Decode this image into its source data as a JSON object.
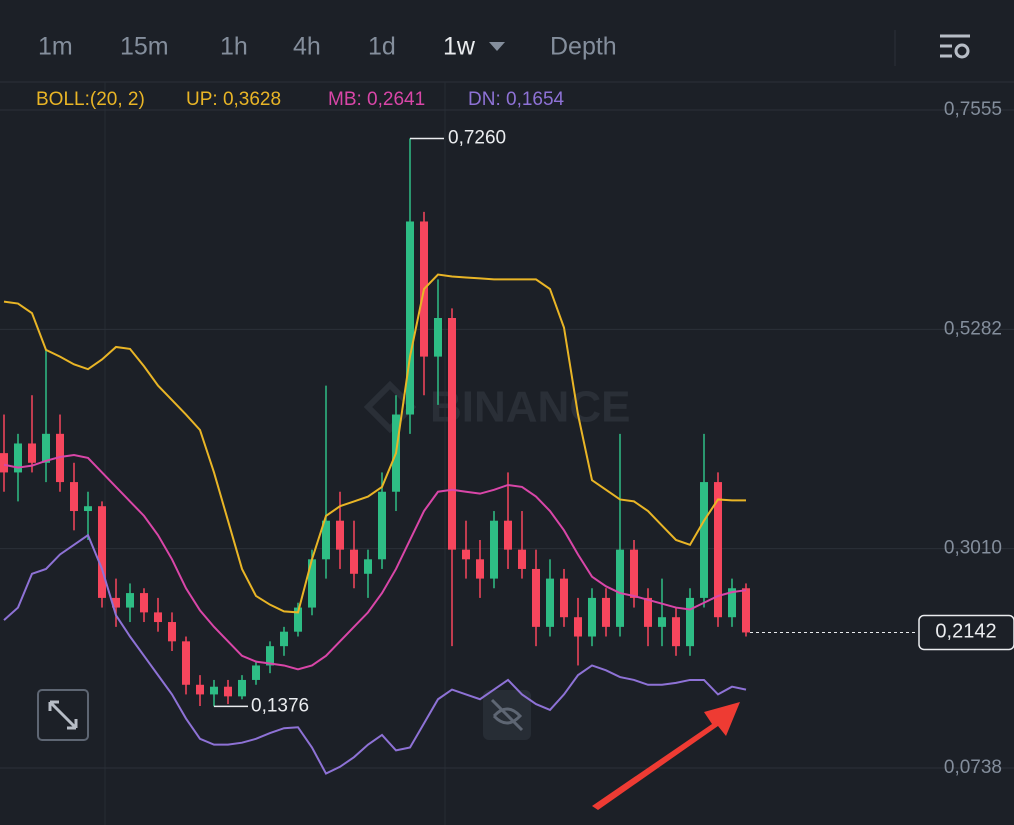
{
  "tabs": [
    "1m",
    "15m",
    "1h",
    "4h",
    "1d",
    "1w",
    "Depth"
  ],
  "chart_data": {
    "type": "candlestick",
    "indicator": {
      "name": "BOLL:(20, 2)",
      "up": "UP: 0,3628",
      "mb": "MB: 0,2641",
      "dn": "DN: 0,1654"
    },
    "watermark": "BINANCE",
    "ylim": [
      0.0458,
      0.7814
    ],
    "yticks": [
      {
        "value": 0.7555,
        "label": "0,7555"
      },
      {
        "value": 0.5282,
        "label": "0,5282"
      },
      {
        "value": 0.301,
        "label": "0,3010"
      },
      {
        "value": 0.0738,
        "label": "0,0738"
      }
    ],
    "up_color": "#2ebd85",
    "down_color": "#f6465d",
    "candles": [
      [
        0.4,
        0.44,
        0.36,
        0.38
      ],
      [
        0.38,
        0.42,
        0.35,
        0.41
      ],
      [
        0.41,
        0.46,
        0.38,
        0.39
      ],
      [
        0.39,
        0.507,
        0.37,
        0.42
      ],
      [
        0.42,
        0.44,
        0.36,
        0.37
      ],
      [
        0.37,
        0.39,
        0.32,
        0.34
      ],
      [
        0.34,
        0.36,
        0.31,
        0.345
      ],
      [
        0.345,
        0.35,
        0.24,
        0.25
      ],
      [
        0.25,
        0.27,
        0.22,
        0.24
      ],
      [
        0.24,
        0.265,
        0.225,
        0.255
      ],
      [
        0.255,
        0.26,
        0.225,
        0.235
      ],
      [
        0.235,
        0.25,
        0.215,
        0.225
      ],
      [
        0.225,
        0.235,
        0.195,
        0.205
      ],
      [
        0.205,
        0.21,
        0.15,
        0.16
      ],
      [
        0.16,
        0.17,
        0.138,
        0.15
      ],
      [
        0.15,
        0.165,
        0.1376,
        0.158
      ],
      [
        0.158,
        0.165,
        0.14,
        0.148
      ],
      [
        0.148,
        0.17,
        0.145,
        0.165
      ],
      [
        0.165,
        0.185,
        0.16,
        0.18
      ],
      [
        0.18,
        0.205,
        0.172,
        0.2
      ],
      [
        0.2,
        0.22,
        0.19,
        0.215
      ],
      [
        0.215,
        0.245,
        0.21,
        0.24
      ],
      [
        0.24,
        0.3,
        0.232,
        0.29
      ],
      [
        0.29,
        0.47,
        0.27,
        0.33
      ],
      [
        0.33,
        0.36,
        0.28,
        0.3
      ],
      [
        0.3,
        0.33,
        0.26,
        0.275
      ],
      [
        0.275,
        0.3,
        0.25,
        0.29
      ],
      [
        0.29,
        0.38,
        0.28,
        0.36
      ],
      [
        0.36,
        0.46,
        0.34,
        0.44
      ],
      [
        0.44,
        0.726,
        0.42,
        0.64
      ],
      [
        0.64,
        0.65,
        0.46,
        0.5
      ],
      [
        0.5,
        0.58,
        0.45,
        0.54
      ],
      [
        0.54,
        0.55,
        0.2,
        0.3
      ],
      [
        0.3,
        0.33,
        0.27,
        0.29
      ],
      [
        0.29,
        0.31,
        0.25,
        0.27
      ],
      [
        0.27,
        0.34,
        0.26,
        0.33
      ],
      [
        0.33,
        0.38,
        0.28,
        0.3
      ],
      [
        0.3,
        0.34,
        0.27,
        0.28
      ],
      [
        0.28,
        0.3,
        0.2,
        0.22
      ],
      [
        0.22,
        0.29,
        0.21,
        0.27
      ],
      [
        0.27,
        0.28,
        0.22,
        0.23
      ],
      [
        0.23,
        0.25,
        0.18,
        0.21
      ],
      [
        0.21,
        0.26,
        0.2,
        0.25
      ],
      [
        0.25,
        0.26,
        0.21,
        0.22
      ],
      [
        0.22,
        0.42,
        0.21,
        0.3
      ],
      [
        0.3,
        0.31,
        0.24,
        0.25
      ],
      [
        0.25,
        0.26,
        0.2,
        0.22
      ],
      [
        0.22,
        0.27,
        0.2,
        0.23
      ],
      [
        0.23,
        0.24,
        0.19,
        0.2
      ],
      [
        0.2,
        0.26,
        0.19,
        0.25
      ],
      [
        0.25,
        0.42,
        0.24,
        0.37
      ],
      [
        0.37,
        0.38,
        0.22,
        0.23
      ],
      [
        0.23,
        0.27,
        0.22,
        0.26
      ],
      [
        0.26,
        0.265,
        0.21,
        0.2142
      ]
    ],
    "bands": [
      {
        "color": "#e9b526",
        "values": [
          0.557,
          0.555,
          0.545,
          0.507,
          0.5,
          0.492,
          0.487,
          0.497,
          0.51,
          0.508,
          0.49,
          0.47,
          0.455,
          0.44,
          0.424,
          0.38,
          0.33,
          0.28,
          0.252,
          0.243,
          0.236,
          0.235,
          0.29,
          0.335,
          0.345,
          0.35,
          0.355,
          0.365,
          0.4,
          0.5,
          0.57,
          0.585,
          0.583,
          0.582,
          0.581,
          0.58,
          0.58,
          0.58,
          0.58,
          0.57,
          0.53,
          0.44,
          0.372,
          0.362,
          0.352,
          0.35,
          0.34,
          0.325,
          0.31,
          0.305,
          0.33,
          0.352,
          0.351,
          0.351
        ]
      },
      {
        "color": "#d946a8",
        "values": [
          0.388,
          0.385,
          0.387,
          0.392,
          0.396,
          0.398,
          0.395,
          0.38,
          0.365,
          0.35,
          0.335,
          0.315,
          0.29,
          0.26,
          0.237,
          0.22,
          0.205,
          0.19,
          0.184,
          0.182,
          0.18,
          0.176,
          0.18,
          0.19,
          0.205,
          0.22,
          0.235,
          0.255,
          0.28,
          0.31,
          0.34,
          0.36,
          0.362,
          0.36,
          0.358,
          0.362,
          0.367,
          0.365,
          0.355,
          0.34,
          0.32,
          0.295,
          0.272,
          0.262,
          0.255,
          0.252,
          0.248,
          0.244,
          0.24,
          0.238,
          0.245,
          0.252,
          0.256,
          0.258
        ]
      },
      {
        "color": "#8e72d6",
        "values": [
          0.227,
          0.24,
          0.275,
          0.28,
          0.295,
          0.305,
          0.315,
          0.28,
          0.232,
          0.21,
          0.19,
          0.17,
          0.15,
          0.125,
          0.104,
          0.098,
          0.098,
          0.1,
          0.104,
          0.11,
          0.115,
          0.116,
          0.095,
          0.068,
          0.075,
          0.085,
          0.098,
          0.108,
          0.092,
          0.095,
          0.12,
          0.145,
          0.155,
          0.15,
          0.145,
          0.155,
          0.165,
          0.15,
          0.14,
          0.134,
          0.15,
          0.17,
          0.18,
          0.175,
          0.168,
          0.165,
          0.16,
          0.16,
          0.162,
          0.165,
          0.165,
          0.15,
          0.158,
          0.155
        ]
      }
    ],
    "high_label": {
      "value": 0.726,
      "label": "0,7260"
    },
    "low_label": {
      "value": 0.1376,
      "label": "0,1376"
    },
    "last_price": {
      "value": 0.2142,
      "label": "0,2142"
    }
  }
}
